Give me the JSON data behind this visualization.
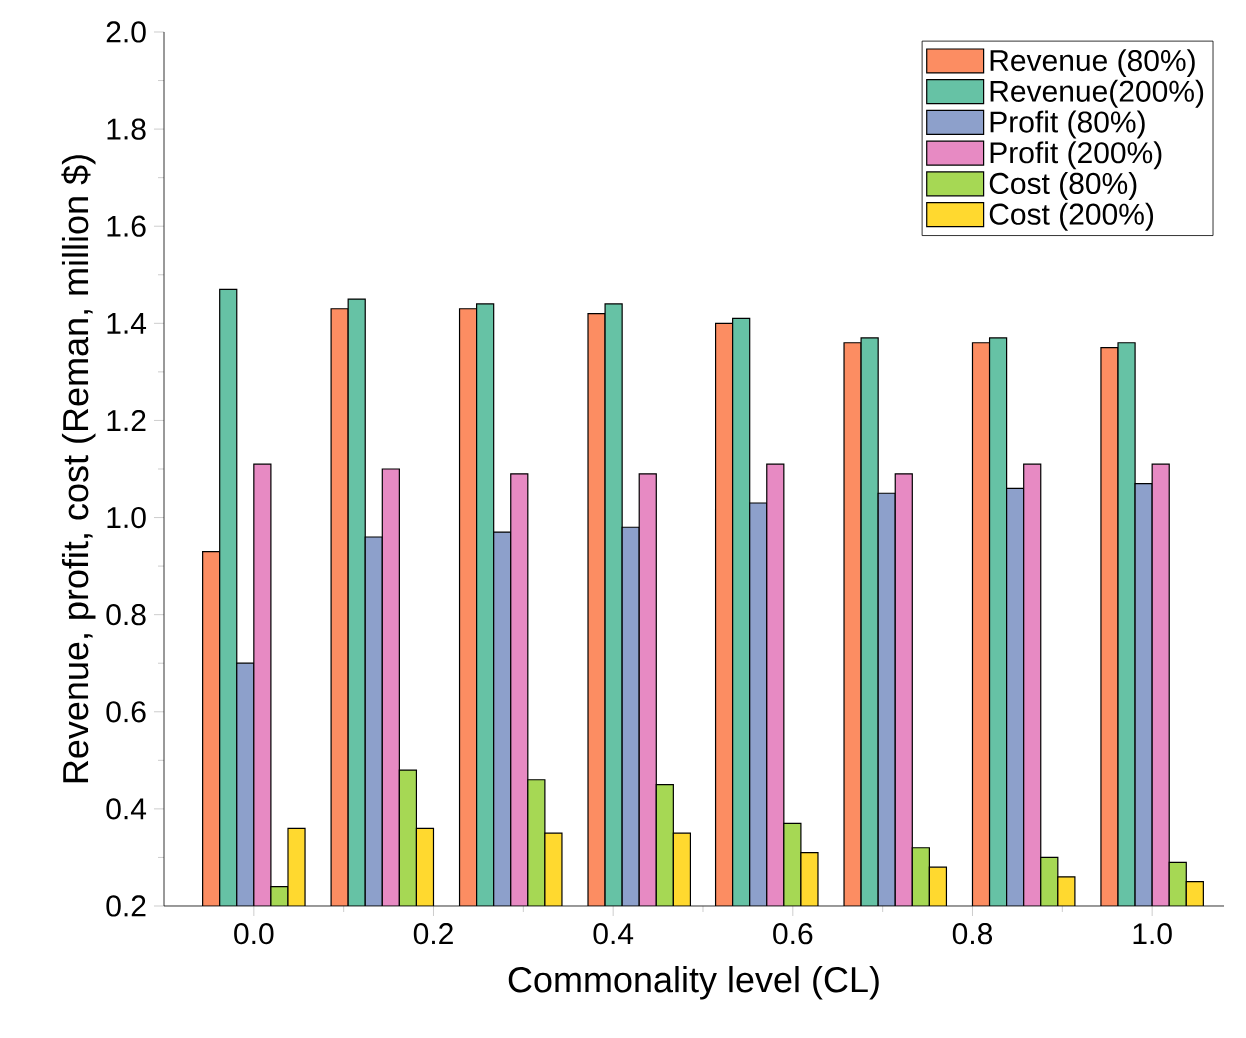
{
  "chart_data": {
    "type": "bar",
    "xlabel": "Commonality level (CL)",
    "ylabel": "Revenue, profit, cost (Reman, million $)",
    "x": [
      0,
      0.143,
      0.286,
      0.429,
      0.571,
      0.714,
      0.857,
      1.0
    ],
    "series": [
      {
        "name": "Revenue (80%)",
        "color": "#fc8d62",
        "values": [
          0.93,
          1.43,
          1.43,
          1.42,
          1.4,
          1.36,
          1.36,
          1.35
        ]
      },
      {
        "name": "Revenue(200%)",
        "color": "#66c2a5",
        "values": [
          1.47,
          1.45,
          1.44,
          1.44,
          1.41,
          1.37,
          1.37,
          1.36
        ]
      },
      {
        "name": "Profit (80%)",
        "color": "#8da0cb",
        "values": [
          0.7,
          0.96,
          0.97,
          0.98,
          1.03,
          1.05,
          1.06,
          1.07
        ]
      },
      {
        "name": "Profit (200%)",
        "color": "#e78ac3",
        "values": [
          1.11,
          1.1,
          1.09,
          1.09,
          1.11,
          1.09,
          1.11,
          1.11
        ]
      },
      {
        "name": "Cost (80%)",
        "color": "#a6d854",
        "values": [
          0.24,
          0.48,
          0.46,
          0.45,
          0.37,
          0.32,
          0.3,
          0.29
        ]
      },
      {
        "name": "Cost (200%)",
        "color": "#ffd92f",
        "values": [
          0.36,
          0.36,
          0.35,
          0.35,
          0.31,
          0.28,
          0.26,
          0.25
        ]
      }
    ],
    "xlim": [
      -0.1,
      1.08
    ],
    "xticks": [
      {
        "value": 0,
        "label": "0.0"
      },
      {
        "value": 0.2,
        "label": "0.2"
      },
      {
        "value": 0.4,
        "label": "0.4"
      },
      {
        "value": 0.6,
        "label": "0.6"
      },
      {
        "value": 0.8,
        "label": "0.8"
      },
      {
        "value": 1.0,
        "label": "1.0"
      }
    ],
    "ylim": [
      0.2,
      2.0
    ],
    "yticks": [
      {
        "value": 0.2,
        "label": "0.2"
      },
      {
        "value": 0.4,
        "label": "0.4"
      },
      {
        "value": 0.6,
        "label": "0.6"
      },
      {
        "value": 0.8,
        "label": "0.8"
      },
      {
        "value": 1.0,
        "label": "1.0"
      },
      {
        "value": 1.2,
        "label": "1.2"
      },
      {
        "value": 1.4,
        "label": "1.4"
      },
      {
        "value": 1.6,
        "label": "1.6"
      },
      {
        "value": 1.8,
        "label": "1.8"
      },
      {
        "value": 2.0,
        "label": "2.0"
      }
    ],
    "legend": "top right",
    "grid": false
  }
}
